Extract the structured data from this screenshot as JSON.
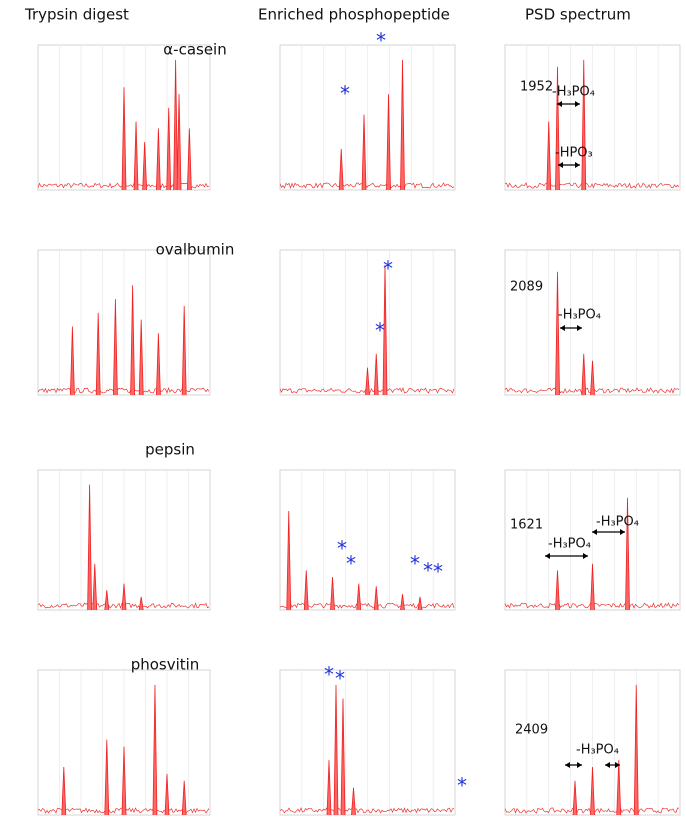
{
  "header": {
    "columns": [
      "Trypsin digest",
      "Enriched phosphopeptide",
      "PSD spectrum"
    ]
  },
  "marker": "*",
  "rows": [
    {
      "protein": "α-casein",
      "psd_mass": "1952",
      "annotations": [
        "-H₃PO₄",
        "-HPO₃"
      ]
    },
    {
      "protein": "ovalbumin",
      "psd_mass": "2089",
      "annotations": [
        "-H₃PO₄"
      ]
    },
    {
      "protein": "pepsin",
      "psd_mass": "1621",
      "annotations": [
        "-H₃PO₄",
        "-H₃PO₄"
      ]
    },
    {
      "protein": "phosvitin",
      "psd_mass": "2409",
      "annotations": [
        "-H₃PO₄"
      ]
    }
  ]
}
